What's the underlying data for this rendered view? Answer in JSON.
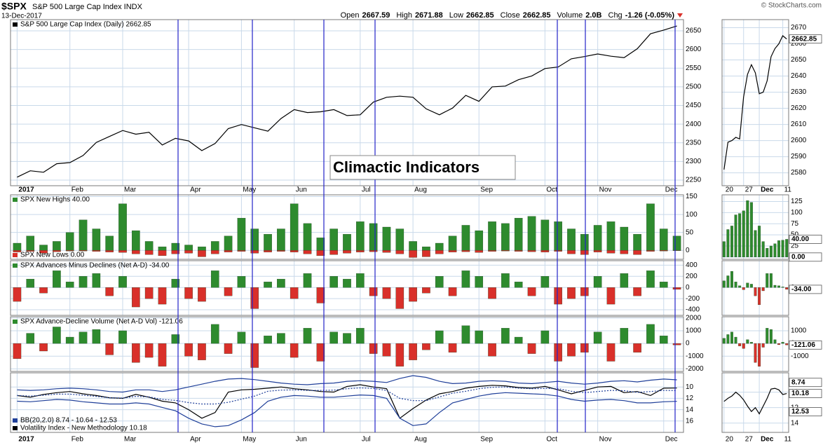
{
  "header": {
    "symbol": "$SPX",
    "name": "S&P 500 Large Cap Index INDX",
    "date": "13-Dec-2017",
    "quote": [
      [
        "Open",
        "2667.59"
      ],
      [
        "High",
        "2671.88"
      ],
      [
        "Low",
        "2662.85"
      ],
      [
        "Close",
        "2662.85"
      ],
      [
        "Volume",
        "2.0B"
      ],
      [
        "Chg",
        "-1.26 (-0.05%)"
      ]
    ],
    "credit": "© StockCharts.com"
  },
  "annotation": "Climactic Indicators",
  "chart_data": [
    {
      "type": "line",
      "legends": [
        "S&P 500 Large Cap Index (Daily) 2662.85"
      ],
      "last_labels": [
        "2662.85"
      ],
      "series": [
        {
          "color": "#000000",
          "values": [
            2258,
            2275,
            2271,
            2294,
            2297,
            2316,
            2351,
            2367,
            2383,
            2373,
            2378,
            2344,
            2362,
            2355,
            2329,
            2348,
            2388,
            2399,
            2390,
            2381,
            2415,
            2439,
            2431,
            2433,
            2439,
            2423,
            2425,
            2459,
            2472,
            2475,
            2472,
            2441,
            2425,
            2443,
            2477,
            2461,
            2500,
            2502,
            2519,
            2529,
            2549,
            2553,
            2575,
            2581,
            2588,
            2582,
            2578,
            2602,
            2642,
            2652,
            2663
          ]
        }
      ],
      "ylim": [
        2235,
        2680
      ],
      "yticks": [
        2250,
        2300,
        2350,
        2400,
        2450,
        2500,
        2550,
        2600,
        2650
      ],
      "xticks": [
        {
          "value": 0,
          "label": "2017"
        },
        {
          "value": 4,
          "label": "Feb"
        },
        {
          "value": 8,
          "label": "Mar"
        },
        {
          "value": 13,
          "label": "Apr"
        },
        {
          "value": 17,
          "label": "May"
        },
        {
          "value": 21,
          "label": "Jun"
        },
        {
          "value": 26,
          "label": "Jul"
        },
        {
          "value": 30,
          "label": "Aug"
        },
        {
          "value": 35,
          "label": "Sep"
        },
        {
          "value": 40,
          "label": "Oct"
        },
        {
          "value": 44,
          "label": "Nov"
        },
        {
          "value": 49,
          "label": "Dec"
        }
      ],
      "grid": true,
      "mini": {
        "series": [
          {
            "color": "#000000",
            "values": [
              2582,
              2599,
              2600,
              2602,
              2601,
              2627,
              2641,
              2647,
              2642,
              2629,
              2630,
              2637,
              2652,
              2657,
              2660,
              2665,
              2663
            ]
          }
        ],
        "ylim": [
          2572,
          2675
        ],
        "yticks": [
          2580,
          2590,
          2600,
          2610,
          2620,
          2630,
          2640,
          2650,
          2660,
          2670
        ],
        "xticks": [
          {
            "value": 0,
            "label": "20"
          },
          {
            "value": 5,
            "label": "27"
          },
          {
            "value": 9,
            "label": "Dec"
          },
          {
            "value": 15,
            "label": "11"
          }
        ]
      }
    },
    {
      "type": "bar",
      "legends": [
        "SPX New Highs 40.00",
        "SPX New Lows 0.00"
      ],
      "last_labels": [
        "40.00",
        "0.00"
      ],
      "series": [
        {
          "color": "#2e8b2e",
          "values": [
            20,
            40,
            15,
            25,
            50,
            85,
            60,
            40,
            130,
            55,
            25,
            10,
            20,
            15,
            10,
            25,
            40,
            90,
            60,
            45,
            60,
            130,
            75,
            35,
            60,
            45,
            80,
            75,
            65,
            60,
            25,
            10,
            20,
            40,
            70,
            55,
            80,
            75,
            90,
            95,
            85,
            80,
            60,
            45,
            70,
            80,
            65,
            45,
            130,
            60,
            40
          ]
        },
        {
          "color": "#d9302a",
          "values": [
            -5,
            -3,
            -8,
            -4,
            -2,
            -2,
            -3,
            -5,
            -6,
            -10,
            -12,
            -15,
            -10,
            -8,
            -18,
            -10,
            -5,
            -3,
            -8,
            -5,
            -3,
            -5,
            -10,
            -15,
            -12,
            -8,
            -5,
            -4,
            -6,
            -10,
            -20,
            -18,
            -10,
            -5,
            -4,
            -6,
            -3,
            -2,
            -3,
            -4,
            -5,
            -3,
            -10,
            -12,
            -5,
            -8,
            -10,
            -12,
            -3,
            -2,
            0
          ]
        }
      ],
      "ylim": [
        -25,
        155
      ],
      "yticks": [
        0,
        50,
        100,
        150
      ],
      "grid": true,
      "mini": {
        "series": [
          {
            "color": "#2e8b2e",
            "values": [
              35,
              62,
              70,
              95,
              98,
              104,
              127,
              123,
              60,
              70,
              35,
              20,
              25,
              30,
              37,
              38,
              40
            ]
          }
        ],
        "ylim": [
          -5,
          140
        ],
        "yticks": [
          0,
          25,
          50,
          75,
          100,
          125
        ]
      }
    },
    {
      "type": "bar",
      "legends": [
        "SPX Advances Minus Declines (Net A-D) -34.00"
      ],
      "last_labels": [
        "-34.00"
      ],
      "series": [
        {
          "color": "#2e8b2e",
          "negative_color": "#d9302a",
          "values": [
            -250,
            150,
            -100,
            300,
            100,
            200,
            250,
            -150,
            200,
            -350,
            -200,
            -300,
            150,
            -200,
            -250,
            300,
            -150,
            200,
            -380,
            100,
            150,
            -200,
            250,
            -280,
            200,
            150,
            250,
            -150,
            -200,
            -380,
            -250,
            -100,
            200,
            -150,
            300,
            200,
            -200,
            250,
            100,
            -150,
            200,
            -300,
            -200,
            -150,
            200,
            -300,
            250,
            -150,
            300,
            100,
            -34
          ]
        }
      ],
      "ylim": [
        -500,
        480
      ],
      "yticks": [
        -400,
        -200,
        0,
        200,
        400
      ],
      "grid": true,
      "mini": {
        "series": [
          {
            "color": "#2e8b2e",
            "negative_color": "#d9302a",
            "values": [
              120,
              210,
              290,
              100,
              30,
              -40,
              80,
              60,
              -150,
              -310,
              -60,
              250,
              250,
              40,
              30,
              10,
              -34
            ]
          }
        ],
        "ylim": [
          -500,
          480
        ],
        "yticks": [
          0
        ]
      }
    },
    {
      "type": "bar",
      "legends": [
        "SPX Advance-Decline Volume (Net A-D Vol) -121.06"
      ],
      "last_labels": [
        "-121.06"
      ],
      "series": [
        {
          "color": "#2e8b2e",
          "negative_color": "#d9302a",
          "values": [
            -1200,
            800,
            -600,
            1300,
            500,
            900,
            1100,
            -900,
            1000,
            -1500,
            -1100,
            -1800,
            700,
            -1000,
            -1300,
            1500,
            -800,
            900,
            -1900,
            600,
            800,
            -1100,
            1200,
            -1400,
            900,
            800,
            1200,
            -800,
            -1000,
            -1800,
            -1300,
            -500,
            1000,
            -700,
            1400,
            1000,
            -1000,
            1200,
            500,
            -800,
            1000,
            -1400,
            -1000,
            -700,
            900,
            -1400,
            1200,
            -700,
            1500,
            600,
            -121.06
          ]
        }
      ],
      "ylim": [
        -2200,
        2100
      ],
      "yticks": [
        -2000,
        -1000,
        0,
        1000,
        2000
      ],
      "grid": true,
      "mini": {
        "series": [
          {
            "color": "#2e8b2e",
            "negative_color": "#d9302a",
            "values": [
              400,
              700,
              900,
              500,
              -200,
              -400,
              300,
              100,
              -1500,
              -1800,
              -300,
              1200,
              1100,
              300,
              -100,
              100,
              -121.06
            ]
          }
        ],
        "ylim": [
          -2200,
          2100
        ],
        "yticks": [
          -1000,
          0,
          1000
        ]
      }
    },
    {
      "type": "line",
      "inverted": true,
      "legends": [
        "BB(20,2.0) 8.74 - 10.64 - 12.53",
        "Volatility Index - New Methodology 10.18"
      ],
      "last_labels": [
        "8.74",
        "10.18",
        "12.53"
      ],
      "series": [
        {
          "color": "#1f3f99",
          "values": [
            10.5,
            10.6,
            10.5,
            10.3,
            10.2,
            10.3,
            10.5,
            10.8,
            10.9,
            10.5,
            10.5,
            10.8,
            10.5,
            10.0,
            9.5,
            9.0,
            8.6,
            8.5,
            8.7,
            9.0,
            9.3,
            9.5,
            9.6,
            9.4,
            9.3,
            9.0,
            8.9,
            9.0,
            9.2,
            8.5,
            8.0,
            8.3,
            9.0,
            9.4,
            9.3,
            9.0,
            8.9,
            9.0,
            9.3,
            9.4,
            9.2,
            9.0,
            9.3,
            9.5,
            9.3,
            9.0,
            8.9,
            9.1,
            8.8,
            8.6,
            8.74
          ]
        },
        {
          "color": "#000000",
          "values": [
            11.5,
            11.8,
            11.3,
            11.0,
            10.8,
            11.2,
            11.5,
            11.9,
            12.0,
            11.3,
            11.8,
            12.5,
            12.8,
            14.0,
            15.5,
            14.5,
            10.9,
            10.5,
            10.4,
            10.2,
            10.0,
            10.3,
            10.5,
            10.8,
            10.9,
            9.9,
            9.6,
            10.0,
            10.3,
            15.5,
            13.8,
            12.3,
            11.2,
            10.8,
            10.2,
            9.9,
            9.7,
            9.8,
            10.1,
            10.2,
            9.9,
            10.5,
            11.2,
            10.6,
            10.0,
            9.9,
            11.0,
            10.8,
            11.5,
            10.2,
            10.18
          ]
        },
        {
          "color": "#1f3f99",
          "values": [
            12.5,
            12.6,
            12.4,
            12.2,
            12.3,
            12.6,
            12.8,
            13.0,
            13.0,
            12.8,
            13.0,
            13.6,
            14.2,
            15.5,
            16.5,
            17.0,
            16.8,
            15.8,
            14.5,
            12.5,
            11.8,
            11.5,
            11.6,
            11.8,
            11.8,
            11.6,
            11.4,
            11.5,
            12.0,
            15.5,
            16.8,
            16.5,
            14.5,
            12.8,
            12.2,
            11.6,
            11.2,
            11.0,
            11.1,
            11.2,
            11.3,
            11.6,
            12.2,
            12.5,
            12.3,
            12.2,
            12.4,
            12.8,
            12.8,
            12.6,
            12.53
          ]
        },
        {
          "color": "#1f3f99",
          "dashed": true,
          "values": [
            11.5,
            11.6,
            11.45,
            11.25,
            11.25,
            11.45,
            11.65,
            11.9,
            11.95,
            11.65,
            11.75,
            12.2,
            12.35,
            12.75,
            13.0,
            13.0,
            12.7,
            12.15,
            11.6,
            10.75,
            10.55,
            10.5,
            10.6,
            10.6,
            10.55,
            10.3,
            10.15,
            10.25,
            10.6,
            12.0,
            12.4,
            12.4,
            11.75,
            11.1,
            10.75,
            10.3,
            10.05,
            10.0,
            10.2,
            10.3,
            10.25,
            10.3,
            10.75,
            11.0,
            10.8,
            10.6,
            10.65,
            10.95,
            10.8,
            10.6,
            10.64
          ]
        }
      ],
      "ylim": [
        7.5,
        18
      ],
      "yticks": [
        10,
        12,
        14,
        16
      ],
      "grid": true,
      "mini": {
        "series": [
          {
            "color": "#000000",
            "values": [
              11.2,
              10.8,
              10.5,
              10.0,
              10.4,
              11.0,
              11.8,
              12.5,
              12.0,
              12.8,
              11.8,
              10.8,
              9.6,
              9.5,
              9.7,
              10.3,
              10.18
            ]
          }
        ],
        "ylim": [
          7.5,
          15.2
        ],
        "yticks": [
          10,
          12,
          14
        ]
      }
    }
  ]
}
